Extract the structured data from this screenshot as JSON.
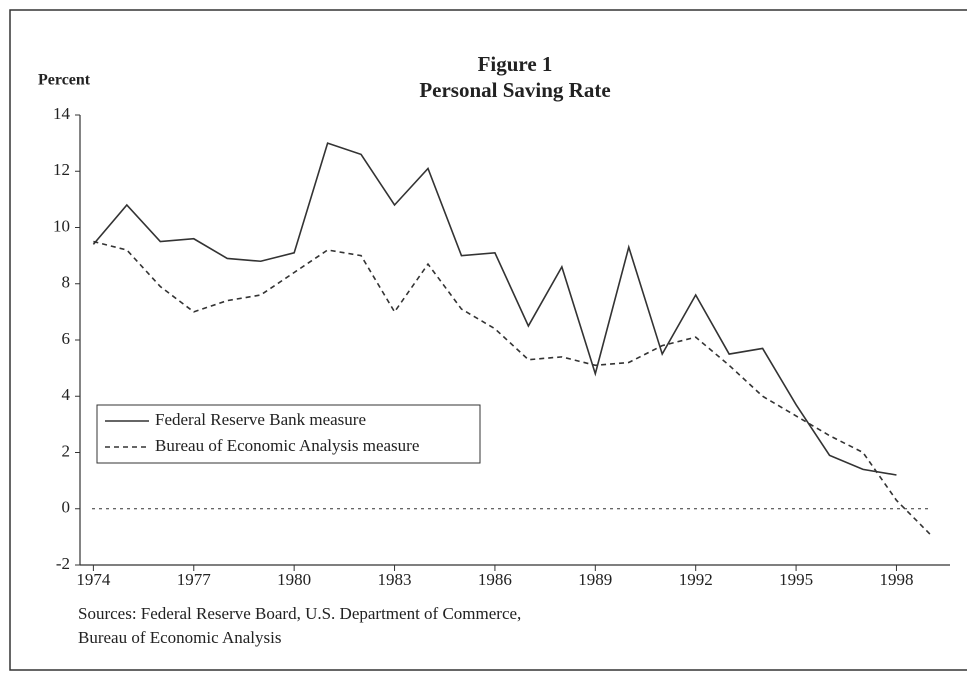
{
  "chart_data": {
    "type": "line",
    "title": "Figure 1",
    "subtitle": "Personal Saving Rate",
    "y_label": "Percent",
    "source": [
      "Sources: Federal Reserve Board, U.S. Department of Commerce,",
      "Bureau of Economic Analysis"
    ],
    "x": [
      1974,
      1975,
      1976,
      1977,
      1978,
      1979,
      1980,
      1981,
      1982,
      1983,
      1984,
      1985,
      1986,
      1987,
      1988,
      1989,
      1990,
      1991,
      1992,
      1993,
      1994,
      1995,
      1996,
      1997,
      1998,
      1999
    ],
    "series": [
      {
        "name": "Federal Reserve Bank measure",
        "color": "#333333",
        "dash": "solid",
        "values": [
          9.4,
          10.8,
          9.5,
          9.6,
          8.9,
          8.8,
          9.1,
          13.0,
          12.6,
          10.8,
          12.1,
          9.0,
          9.1,
          6.5,
          8.6,
          4.8,
          9.3,
          5.5,
          7.6,
          5.5,
          5.7,
          3.7,
          1.9,
          1.4,
          1.2,
          null
        ]
      },
      {
        "name": "Bureau of Economic Analysis measure",
        "color": "#333333",
        "dash": "dashed",
        "values": [
          9.5,
          9.2,
          7.9,
          7.0,
          7.4,
          7.6,
          8.4,
          9.2,
          9.0,
          7.0,
          8.7,
          7.1,
          6.4,
          5.3,
          5.4,
          5.1,
          5.2,
          5.8,
          6.1,
          5.1,
          4.0,
          3.3,
          2.6,
          2.0,
          0.3,
          -0.9
        ]
      }
    ],
    "xlim": [
      1973.6,
      1999.6
    ],
    "xticks": [
      1974,
      1977,
      1980,
      1983,
      1986,
      1989,
      1992,
      1995,
      1998
    ],
    "ylim": [
      -2,
      14
    ],
    "yticks": [
      -2,
      0,
      2,
      4,
      6,
      8,
      10,
      12,
      14
    ],
    "legend": "lower left"
  }
}
